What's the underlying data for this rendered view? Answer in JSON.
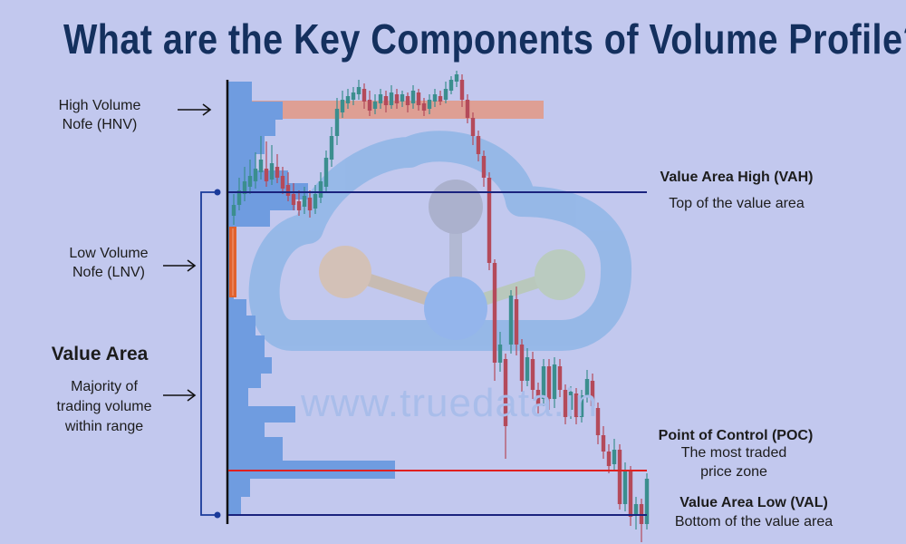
{
  "title": "What are the Key Components of Volume Profile?",
  "watermark": "www.truedata.in",
  "labels": {
    "hnv_line1": "High Volume",
    "hnv_line2": "Nofe (HNV)",
    "lnv_line1": "Low Volume",
    "lnv_line2": "Nofe (LNV)",
    "value_area_title": "Value Area",
    "value_area_line1": "Majority of",
    "value_area_line2": "trading volume",
    "value_area_line3": "within range",
    "vah_title": "Value Area High (VAH)",
    "vah_desc": "Top of the value area",
    "poc_title": "Point of Control (POC)",
    "poc_desc_line1": "The most traded",
    "poc_desc_line2": "price zone",
    "val_title": "Value Area Low (VAL)",
    "val_desc": "Bottom of the value area"
  },
  "colors": {
    "background": "#c2c8ee",
    "title": "#14305e",
    "histogram": "#6f9ce0",
    "hnv_band": "#e39884",
    "lnv_band": "#e0622e",
    "vah_val_line": "#1a237e",
    "poc_line": "#e02020",
    "bull_candle": "#3b8e8e",
    "bear_candle": "#b44a5a"
  },
  "icons": [
    "right-arrow-icon",
    "cloud-network-logo"
  ]
}
